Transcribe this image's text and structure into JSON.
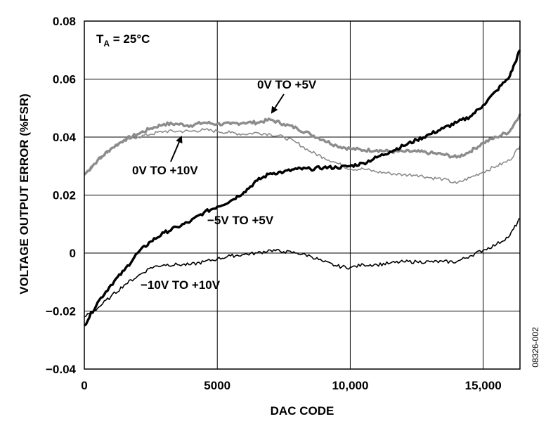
{
  "chart_data": {
    "type": "line",
    "title": "",
    "xlabel": "DAC CODE",
    "ylabel": "VOLTAGE OUTPUT ERROR (%FSR)",
    "xlim": [
      0,
      16383
    ],
    "ylim": [
      -0.04,
      0.08
    ],
    "xticks": [
      0,
      5000,
      10000,
      15000
    ],
    "xtick_labels": [
      "0",
      "5000",
      "10,000",
      "15,000"
    ],
    "yticks": [
      -0.04,
      -0.02,
      0,
      0.02,
      0.04,
      0.06,
      0.08
    ],
    "ytick_labels": [
      "−0.04",
      "−0.02",
      "0",
      "0.02",
      "0.04",
      "0.06",
      "0.08"
    ],
    "grid": true,
    "condition_label": "T",
    "condition_sub": "A",
    "condition_rest": " = 25°C",
    "figure_id": "08326-002",
    "series": [
      {
        "name": "0V TO +5V",
        "color": "#8c8c8c",
        "stroke": "thick",
        "x": [
          0,
          500,
          1000,
          1500,
          2000,
          2500,
          3000,
          3500,
          4000,
          4500,
          5000,
          5500,
          6000,
          6500,
          7000,
          7500,
          8000,
          8500,
          9000,
          9500,
          10000,
          10500,
          11000,
          11500,
          12000,
          12500,
          13000,
          13500,
          14000,
          14500,
          15000,
          15500,
          16000,
          16383
        ],
        "y": [
          0.027,
          0.032,
          0.036,
          0.039,
          0.041,
          0.043,
          0.0445,
          0.0445,
          0.044,
          0.045,
          0.0445,
          0.0445,
          0.045,
          0.045,
          0.046,
          0.0445,
          0.043,
          0.041,
          0.039,
          0.037,
          0.036,
          0.0355,
          0.0355,
          0.035,
          0.035,
          0.035,
          0.0345,
          0.034,
          0.033,
          0.035,
          0.038,
          0.04,
          0.042,
          0.048
        ]
      },
      {
        "name": "0V TO +10V",
        "color": "#8c8c8c",
        "stroke": "thin",
        "x": [
          0,
          500,
          1000,
          1500,
          2000,
          2500,
          3000,
          3500,
          4000,
          4500,
          5000,
          5500,
          6000,
          6500,
          7000,
          7500,
          8000,
          8500,
          9000,
          9500,
          10000,
          10500,
          11000,
          11500,
          12000,
          12500,
          13000,
          13500,
          14000,
          14500,
          15000,
          15500,
          16000,
          16383
        ],
        "y": [
          0.027,
          0.032,
          0.036,
          0.039,
          0.04,
          0.041,
          0.042,
          0.042,
          0.042,
          0.0425,
          0.042,
          0.0415,
          0.041,
          0.0415,
          0.041,
          0.04,
          0.038,
          0.035,
          0.033,
          0.031,
          0.029,
          0.029,
          0.028,
          0.0275,
          0.027,
          0.027,
          0.026,
          0.0255,
          0.024,
          0.026,
          0.028,
          0.03,
          0.032,
          0.037
        ]
      },
      {
        "name": "−5V TO +5V",
        "color": "#000000",
        "stroke": "thick",
        "x": [
          0,
          500,
          1000,
          1500,
          2000,
          2500,
          3000,
          3500,
          4000,
          4500,
          5000,
          5500,
          6000,
          6500,
          7000,
          7500,
          8000,
          8500,
          9000,
          9500,
          10000,
          10500,
          11000,
          11500,
          12000,
          12500,
          13000,
          13500,
          14000,
          14500,
          15000,
          15500,
          16000,
          16383
        ],
        "y": [
          -0.025,
          -0.017,
          -0.011,
          -0.006,
          0.0,
          0.004,
          0.007,
          0.009,
          0.011,
          0.014,
          0.016,
          0.018,
          0.021,
          0.025,
          0.0275,
          0.028,
          0.029,
          0.029,
          0.0295,
          0.0295,
          0.03,
          0.031,
          0.033,
          0.035,
          0.037,
          0.039,
          0.041,
          0.043,
          0.045,
          0.047,
          0.051,
          0.056,
          0.061,
          0.07
        ]
      },
      {
        "name": "−10V TO +10V",
        "color": "#000000",
        "stroke": "thin",
        "x": [
          0,
          500,
          1000,
          1500,
          2000,
          2500,
          3000,
          3500,
          4000,
          4500,
          5000,
          5500,
          6000,
          6500,
          7000,
          7500,
          8000,
          8500,
          9000,
          9500,
          10000,
          10500,
          11000,
          11500,
          12000,
          12500,
          13000,
          13500,
          14000,
          14500,
          15000,
          15500,
          16000,
          16383
        ],
        "y": [
          -0.022,
          -0.019,
          -0.015,
          -0.011,
          -0.008,
          -0.005,
          -0.004,
          -0.004,
          -0.004,
          -0.003,
          -0.002,
          -0.001,
          -0.0005,
          0.0,
          0.001,
          0.0005,
          0.0,
          -0.001,
          -0.003,
          -0.0045,
          -0.005,
          -0.004,
          -0.004,
          -0.0035,
          -0.003,
          -0.003,
          -0.003,
          -0.003,
          -0.003,
          -0.001,
          0.001,
          0.003,
          0.006,
          0.012
        ]
      }
    ],
    "annotations": [
      {
        "text": "0V TO +5V",
        "arrow_to": [
          7000,
          0.047
        ]
      },
      {
        "text": "0V TO +10V",
        "arrow_to": [
          3700,
          0.0415
        ]
      },
      {
        "text": "−5V TO +5V"
      },
      {
        "text": "−10V TO +10V"
      }
    ]
  }
}
